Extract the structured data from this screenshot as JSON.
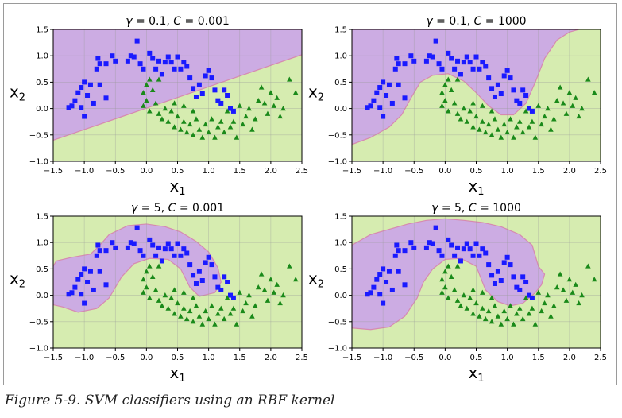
{
  "caption": "Figure 5-9. SVM classifiers using an RBF kernel",
  "colors": {
    "class0_marker": "#1a1aff",
    "class1_marker": "#1a8a1a",
    "class0_region": "#cba9e6",
    "class1_region": "#d6ecb0",
    "boundary": "#d68ab0"
  },
  "chart_data": [
    {
      "type": "scatter",
      "title_parts": [
        "γ",
        " = 0.1, ",
        "C",
        " = 0.001"
      ],
      "xlabel": "x",
      "xlabel_sub": "1",
      "ylabel": "x",
      "ylabel_sub": "2",
      "xlim": [
        -1.5,
        2.5
      ],
      "ylim": [
        -1.0,
        1.5
      ],
      "xticks": [
        "−1.5",
        "−1.0",
        "−0.5",
        "0.0",
        "0.5",
        "1.0",
        "1.5",
        "2.0",
        "2.5"
      ],
      "yticks": [
        "−1.0",
        "−0.5",
        "0.0",
        "0.5",
        "1.0",
        "1.5"
      ],
      "grid": true,
      "boundary": [
        [
          -1.5,
          -0.6
        ],
        [
          2.5,
          1.02
        ]
      ]
    },
    {
      "type": "scatter",
      "title_parts": [
        "γ",
        " = 0.1, ",
        "C",
        " = 1000"
      ],
      "xlabel": "x",
      "xlabel_sub": "1",
      "ylabel": "x",
      "ylabel_sub": "2",
      "xlim": [
        -1.5,
        2.5
      ],
      "ylim": [
        -1.0,
        1.5
      ],
      "xticks": [
        "−1.5",
        "−1.0",
        "−0.5",
        "0.0",
        "0.5",
        "1.0",
        "1.5",
        "2.0",
        "2.5"
      ],
      "yticks": [
        "−1.0",
        "−0.5",
        "0.0",
        "0.5",
        "1.0",
        "1.5"
      ],
      "grid": true,
      "boundary": [
        [
          -1.5,
          -0.68
        ],
        [
          -1.2,
          -0.55
        ],
        [
          -0.9,
          -0.35
        ],
        [
          -0.7,
          -0.12
        ],
        [
          -0.55,
          0.2
        ],
        [
          -0.4,
          0.5
        ],
        [
          -0.2,
          0.63
        ],
        [
          0.05,
          0.66
        ],
        [
          0.3,
          0.52
        ],
        [
          0.5,
          0.3
        ],
        [
          0.7,
          0.05
        ],
        [
          0.9,
          -0.12
        ],
        [
          1.1,
          -0.12
        ],
        [
          1.3,
          0.1
        ],
        [
          1.45,
          0.5
        ],
        [
          1.6,
          0.95
        ],
        [
          1.8,
          1.3
        ],
        [
          2.0,
          1.45
        ],
        [
          2.15,
          1.5
        ]
      ]
    },
    {
      "type": "scatter",
      "title_parts": [
        "γ",
        " = 5, ",
        "C",
        " = 0.001"
      ],
      "xlabel": "x",
      "xlabel_sub": "1",
      "ylabel": "x",
      "ylabel_sub": "2",
      "xlim": [
        -1.5,
        2.5
      ],
      "ylim": [
        -1.0,
        1.5
      ],
      "xticks": [
        "−1.5",
        "−1.0",
        "−0.5",
        "0.0",
        "0.5",
        "1.0",
        "1.5",
        "2.0",
        "2.5"
      ],
      "yticks": [
        "−1.0",
        "−0.5",
        "0.0",
        "0.5",
        "1.0",
        "1.5"
      ],
      "grid": true,
      "boundary": [
        [
          -1.5,
          0.55
        ],
        [
          -1.45,
          0.65
        ],
        [
          -1.2,
          0.72
        ],
        [
          -0.9,
          0.78
        ],
        [
          -0.75,
          0.95
        ],
        [
          -0.6,
          1.15
        ],
        [
          -0.3,
          1.32
        ],
        [
          0.0,
          1.35
        ],
        [
          0.3,
          1.3
        ],
        [
          0.55,
          1.2
        ],
        [
          0.8,
          1.02
        ],
        [
          1.0,
          0.82
        ],
        [
          1.15,
          0.52
        ],
        [
          1.2,
          0.25
        ],
        [
          1.1,
          0.05
        ],
        [
          0.85,
          -0.02
        ],
        [
          0.7,
          0.15
        ],
        [
          0.55,
          0.5
        ],
        [
          0.35,
          0.68
        ],
        [
          0.05,
          0.7
        ],
        [
          -0.2,
          0.6
        ],
        [
          -0.4,
          0.35
        ],
        [
          -0.6,
          -0.05
        ],
        [
          -0.8,
          -0.25
        ],
        [
          -1.1,
          -0.32
        ],
        [
          -1.35,
          -0.22
        ],
        [
          -1.5,
          -0.18
        ]
      ]
    },
    {
      "type": "scatter",
      "title_parts": [
        "γ",
        " = 5, ",
        "C",
        " = 1000"
      ],
      "xlabel": "x",
      "xlabel_sub": "1",
      "ylabel": "x",
      "ylabel_sub": "2",
      "xlim": [
        -1.5,
        2.5
      ],
      "ylim": [
        -1.0,
        1.5
      ],
      "xticks": [
        "−1.5",
        "−1.0",
        "−0.5",
        "0.0",
        "0.5",
        "1.0",
        "1.5",
        "2.0",
        "2.5"
      ],
      "yticks": [
        "−1.0",
        "−0.5",
        "0.0",
        "0.5",
        "1.0",
        "1.5"
      ],
      "grid": true,
      "boundary": [
        [
          -1.5,
          0.95
        ],
        [
          -1.2,
          1.15
        ],
        [
          -0.9,
          1.25
        ],
        [
          -0.6,
          1.35
        ],
        [
          -0.3,
          1.42
        ],
        [
          0.0,
          1.45
        ],
        [
          0.3,
          1.42
        ],
        [
          0.6,
          1.38
        ],
        [
          0.9,
          1.3
        ],
        [
          1.2,
          1.15
        ],
        [
          1.4,
          0.95
        ],
        [
          1.5,
          0.55
        ],
        [
          1.6,
          0.4
        ],
        [
          1.55,
          0.2
        ],
        [
          1.45,
          0.05
        ],
        [
          1.25,
          -0.15
        ],
        [
          1.05,
          -0.2
        ],
        [
          0.85,
          -0.12
        ],
        [
          0.65,
          0.1
        ],
        [
          0.5,
          0.55
        ],
        [
          0.25,
          0.7
        ],
        [
          0.0,
          0.68
        ],
        [
          -0.2,
          0.5
        ],
        [
          -0.35,
          0.25
        ],
        [
          -0.45,
          -0.05
        ],
        [
          -0.65,
          -0.4
        ],
        [
          -0.9,
          -0.6
        ],
        [
          -1.2,
          -0.65
        ],
        [
          -1.5,
          -0.62
        ]
      ]
    }
  ],
  "scatter_points": {
    "class0_squares": [
      [
        -0.78,
        0.95
      ],
      [
        -0.75,
        0.85
      ],
      [
        -0.65,
        0.85
      ],
      [
        -0.55,
        1.0
      ],
      [
        -0.5,
        0.9
      ],
      [
        -0.3,
        0.9
      ],
      [
        -0.25,
        1.0
      ],
      [
        -0.2,
        0.98
      ],
      [
        -0.15,
        1.28
      ],
      [
        -0.1,
        0.85
      ],
      [
        -0.05,
        0.75
      ],
      [
        0.05,
        1.05
      ],
      [
        0.1,
        0.95
      ],
      [
        0.15,
        0.75
      ],
      [
        0.2,
        0.9
      ],
      [
        0.25,
        0.65
      ],
      [
        0.3,
        0.88
      ],
      [
        0.35,
        0.98
      ],
      [
        0.4,
        0.88
      ],
      [
        0.45,
        0.75
      ],
      [
        0.5,
        0.98
      ],
      [
        0.55,
        0.75
      ],
      [
        0.6,
        0.88
      ],
      [
        0.65,
        0.8
      ],
      [
        0.7,
        0.58
      ],
      [
        0.75,
        0.38
      ],
      [
        0.8,
        0.22
      ],
      [
        0.85,
        0.45
      ],
      [
        0.9,
        0.28
      ],
      [
        0.95,
        0.62
      ],
      [
        1.0,
        0.72
      ],
      [
        1.05,
        0.58
      ],
      [
        1.1,
        0.35
      ],
      [
        1.15,
        0.15
      ],
      [
        1.2,
        0.1
      ],
      [
        1.25,
        0.35
      ],
      [
        1.3,
        0.25
      ],
      [
        1.35,
        0.0
      ],
      [
        1.4,
        -0.05
      ],
      [
        -0.8,
        0.75
      ],
      [
        -1.0,
        0.5
      ],
      [
        -1.05,
        0.4
      ],
      [
        -1.1,
        0.3
      ],
      [
        -1.15,
        0.15
      ],
      [
        -1.2,
        0.05
      ],
      [
        -1.25,
        0.02
      ],
      [
        -0.95,
        0.25
      ],
      [
        -1.0,
        -0.15
      ],
      [
        -1.05,
        0.02
      ],
      [
        -0.9,
        0.45
      ],
      [
        -0.85,
        0.1
      ],
      [
        -0.75,
        0.45
      ],
      [
        -0.65,
        0.2
      ]
    ],
    "class1_triangles": [
      [
        0.0,
        0.45
      ],
      [
        0.05,
        0.55
      ],
      [
        0.1,
        0.35
      ],
      [
        0.0,
        0.15
      ],
      [
        -0.05,
        0.05
      ],
      [
        0.05,
        -0.05
      ],
      [
        0.15,
        0.1
      ],
      [
        0.2,
        -0.1
      ],
      [
        0.25,
        -0.2
      ],
      [
        0.3,
        0.0
      ],
      [
        0.35,
        -0.25
      ],
      [
        0.4,
        -0.05
      ],
      [
        0.45,
        -0.35
      ],
      [
        0.5,
        -0.15
      ],
      [
        0.55,
        -0.4
      ],
      [
        0.6,
        -0.25
      ],
      [
        0.65,
        -0.45
      ],
      [
        0.7,
        -0.3
      ],
      [
        0.75,
        -0.5
      ],
      [
        0.8,
        -0.2
      ],
      [
        0.85,
        -0.4
      ],
      [
        0.9,
        -0.55
      ],
      [
        0.95,
        -0.3
      ],
      [
        1.0,
        -0.45
      ],
      [
        1.05,
        -0.2
      ],
      [
        1.1,
        -0.55
      ],
      [
        1.15,
        -0.35
      ],
      [
        1.2,
        -0.25
      ],
      [
        1.25,
        -0.45
      ],
      [
        1.3,
        -0.05
      ],
      [
        1.35,
        -0.35
      ],
      [
        1.4,
        -0.25
      ],
      [
        1.45,
        -0.55
      ],
      [
        1.5,
        0.05
      ],
      [
        1.55,
        -0.3
      ],
      [
        1.6,
        -0.15
      ],
      [
        1.65,
        0.0
      ],
      [
        1.7,
        -0.4
      ],
      [
        1.75,
        -0.2
      ],
      [
        1.8,
        0.15
      ],
      [
        1.85,
        0.4
      ],
      [
        1.9,
        0.1
      ],
      [
        1.95,
        -0.1
      ],
      [
        2.0,
        0.3
      ],
      [
        2.05,
        0.05
      ],
      [
        2.1,
        0.2
      ],
      [
        2.15,
        -0.15
      ],
      [
        2.2,
        0.0
      ],
      [
        2.3,
        0.55
      ],
      [
        2.4,
        0.3
      ],
      [
        0.2,
        0.55
      ],
      [
        0.45,
        0.1
      ],
      [
        0.6,
        0.05
      ],
      [
        0.75,
        -0.05
      ],
      [
        -0.05,
        0.3
      ]
    ]
  }
}
